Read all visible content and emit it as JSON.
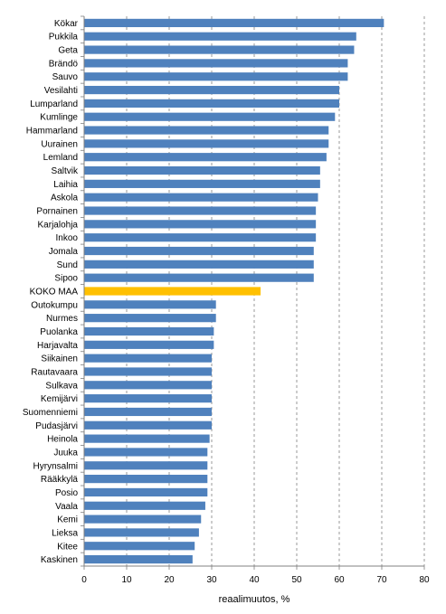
{
  "chart_data": {
    "type": "bar",
    "orientation": "horizontal",
    "categories": [
      "Kökar",
      "Pukkila",
      "Geta",
      "Brändö",
      "Sauvo",
      "Vesilahti",
      "Lumparland",
      "Kumlinge",
      "Hammarland",
      "Uurainen",
      "Lemland",
      "Saltvik",
      "Laihia",
      "Askola",
      "Pornainen",
      "Karjalohja",
      "Inkoo",
      "Jomala",
      "Sund",
      "Sipoo",
      "KOKO MAA",
      "Outokumpu",
      "Nurmes",
      "Puolanka",
      "Harjavalta",
      "Siikainen",
      "Rautavaara",
      "Sulkava",
      "Kemijärvi",
      "Suomenniemi",
      "Pudasjärvi",
      "Heinola",
      "Juuka",
      "Hyrynsalmi",
      "Rääkkylä",
      "Posio",
      "Vaala",
      "Kemi",
      "Lieksa",
      "Kitee",
      "Kaskinen"
    ],
    "values": [
      70.5,
      64,
      63.5,
      62,
      62,
      60,
      60,
      59,
      57.5,
      57.5,
      57,
      55.5,
      55.5,
      55,
      54.5,
      54.5,
      54.5,
      54,
      54,
      54,
      41.5,
      31,
      31,
      30.5,
      30.5,
      30,
      30,
      30,
      30,
      30,
      30,
      29.5,
      29,
      29,
      29,
      29,
      28.5,
      27.5,
      27,
      26,
      25.5
    ],
    "highlight_category": "KOKO MAA",
    "colors": {
      "bar": "#4F81BD",
      "highlight": "#FFC000",
      "grid": "#808080",
      "axis": "#808080"
    },
    "xlabel": "reaalimuutos, %",
    "xlim": [
      0,
      80
    ],
    "xticks": [
      0,
      10,
      20,
      30,
      40,
      50,
      60,
      70,
      80
    ],
    "grid": "vertical dashed",
    "legend": "none"
  }
}
